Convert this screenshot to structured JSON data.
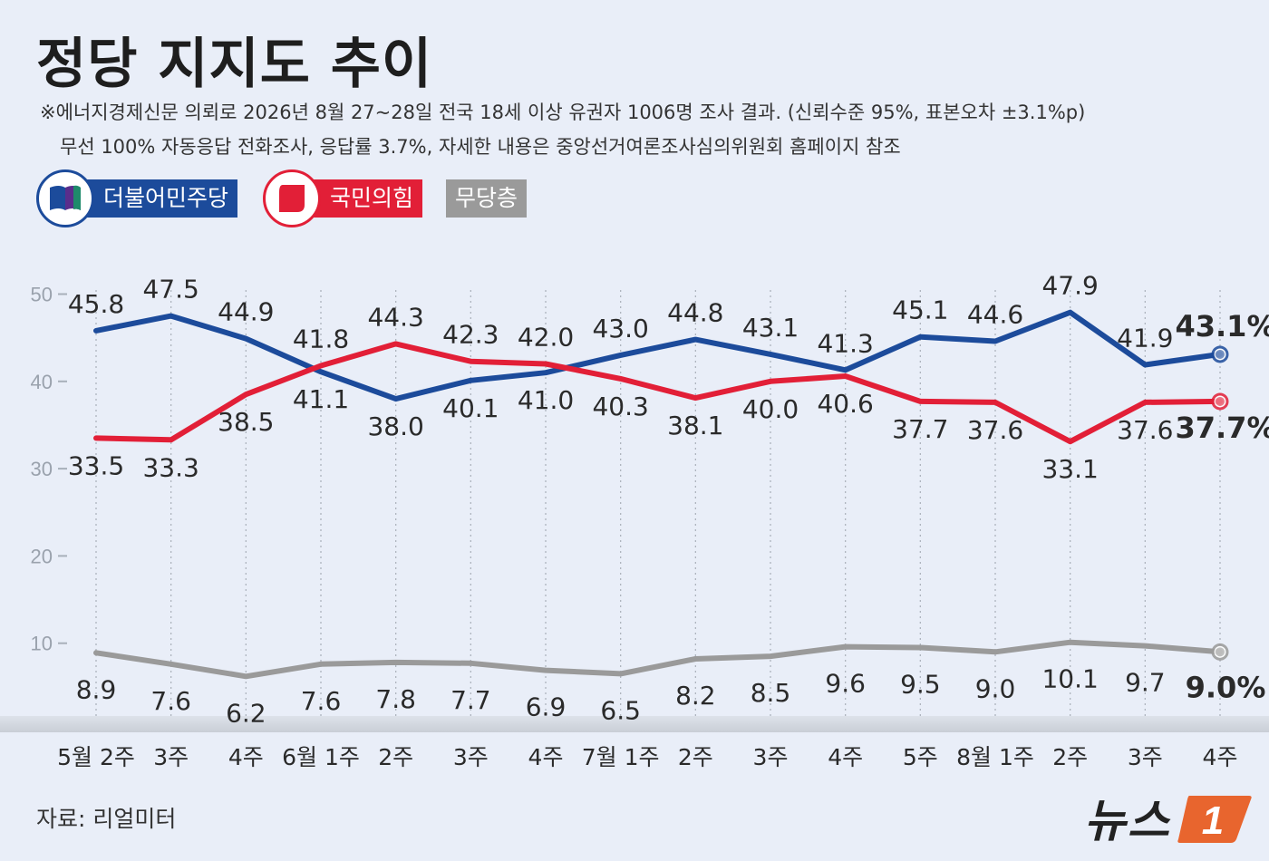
{
  "title": "정당 지지도 추이",
  "note_line1": "※에너지경제신문 의뢰로 2026년 8월 27~28일 전국 18세 이상 유권자 1006명 조사 결과. (신뢰수준 95%, 표본오차 ±3.1%p)",
  "note_line2": "무선 100% 자동응답 전화조사, 응답률 3.7%, 자세한 내용은 중앙선거여론조사심의위원회 홈페이지 참조",
  "source": "자료: 리얼미터",
  "logo_text": "뉴스",
  "logo_mark": "1",
  "colors": {
    "dem": "#1c4b9b",
    "ppp": "#e21f37",
    "ind": "#9a9a9a",
    "background": "#e9eef8"
  },
  "chart_data": {
    "type": "line",
    "ylim": [
      0,
      50
    ],
    "yticks": [
      10,
      20,
      30,
      40,
      50
    ],
    "grid": "vertical dotted lines at each category",
    "categories": [
      "5월 2주",
      "3주",
      "4주",
      "6월 1주",
      "2주",
      "3주",
      "4주",
      "7월 1주",
      "2주",
      "3주",
      "4주",
      "5주",
      "8월 1주",
      "2주",
      "3주",
      "4주"
    ],
    "series": [
      {
        "name": "더불어민주당",
        "values": [
          45.8,
          47.5,
          44.9,
          41.1,
          38.0,
          40.1,
          41.0,
          43.0,
          44.8,
          43.1,
          41.3,
          45.1,
          44.6,
          47.9,
          41.9,
          43.1
        ],
        "labels": [
          "45.8",
          "47.5",
          "44.9",
          "41.1",
          "38.0",
          "40.1",
          "41.0",
          "43.0",
          "44.8",
          "43.1",
          "41.3",
          "45.1",
          "44.6",
          "47.9",
          "41.9",
          "43.1%"
        ]
      },
      {
        "name": "국민의힘",
        "values": [
          33.5,
          33.3,
          38.5,
          41.8,
          44.3,
          42.3,
          42.0,
          40.3,
          38.1,
          40.0,
          40.6,
          37.7,
          37.6,
          33.1,
          37.6,
          37.7
        ],
        "labels": [
          "33.5",
          "33.3",
          "38.5",
          "41.8",
          "44.3",
          "42.3",
          "42.0",
          "40.3",
          "38.1",
          "40.0",
          "40.6",
          "37.7",
          "37.6",
          "33.1",
          "37.6",
          "37.7%"
        ]
      },
      {
        "name": "무당층",
        "values": [
          8.9,
          7.6,
          6.2,
          7.6,
          7.8,
          7.7,
          6.9,
          6.5,
          8.2,
          8.5,
          9.6,
          9.5,
          9.0,
          10.1,
          9.7,
          9.0
        ],
        "labels": [
          "8.9",
          "7.6",
          "6.2",
          "7.6",
          "7.8",
          "7.7",
          "6.9",
          "6.5",
          "8.2",
          "8.5",
          "9.6",
          "9.5",
          "9.0",
          "10.1",
          "9.7",
          "9.0%"
        ]
      }
    ]
  }
}
